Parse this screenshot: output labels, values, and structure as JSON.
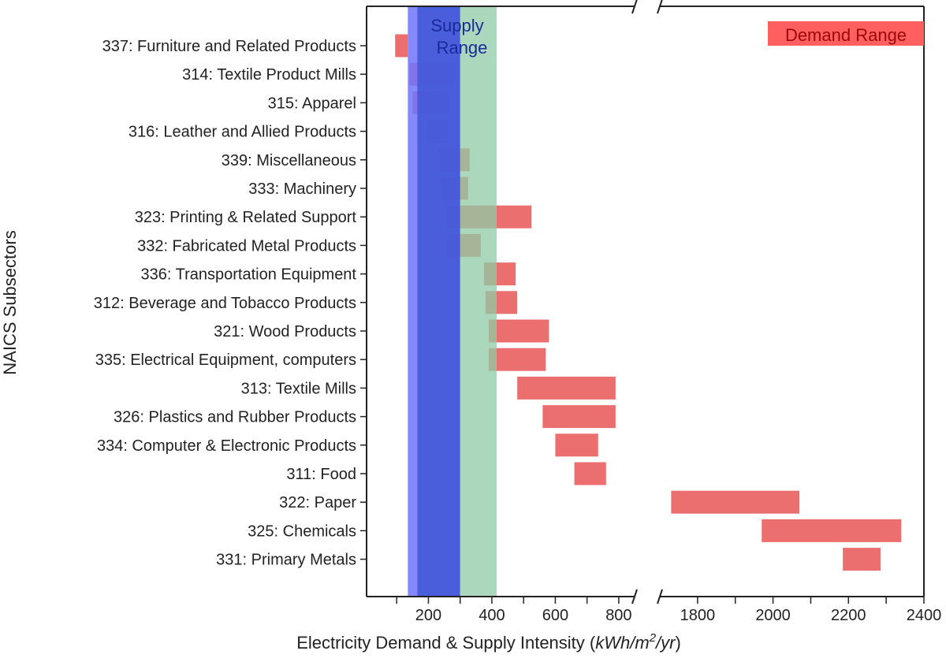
{
  "chart_data": {
    "type": "bar",
    "orientation": "horizontal-range",
    "xlabel_prefix": "Electricity Demand & Supply Intensity (",
    "xlabel_unit": "kWh/m",
    "xlabel_sup": "2",
    "xlabel_unit2": "/yr",
    "xlabel_suffix": ")",
    "ylabel": "NAICS Subsectors",
    "axis_break": true,
    "xlim_left": [
      5,
      850
    ],
    "xlim_right": [
      1700,
      2400
    ],
    "xticks_left": [
      "200",
      "400",
      "600",
      "800"
    ],
    "xticks_left_values": [
      200,
      400,
      600,
      800
    ],
    "xminor_left": [
      100,
      300,
      500,
      700
    ],
    "xticks_right": [
      "1800",
      "2000",
      "2200",
      "2400"
    ],
    "xticks_right_values": [
      1800,
      2000,
      2200,
      2400
    ],
    "xminor_right": [
      1900,
      2100,
      2300
    ],
    "grid": false,
    "categories": [
      "337: Furniture and Related Products",
      "314: Textile Product Mills",
      "315: Apparel",
      "316: Leather and Allied Products",
      "339: Miscellaneous",
      "333: Machinery",
      "323: Printing & Related Support",
      "332: Fabricated Metal Products",
      "336: Transportation Equipment",
      "312: Beverage and Tobacco Products",
      "321: Wood Products",
      "335: Electrical Equipment, computers ",
      "313: Textile Mills",
      "326: Plastics and Rubber Products",
      "334: Computer & Electronic Products",
      "311: Food",
      "322: Paper",
      "325: Chemicals",
      "331: Primary Metals"
    ],
    "demand_ranges": [
      [
        95,
        135
      ],
      [
        140,
        285
      ],
      [
        150,
        265
      ],
      [
        195,
        260
      ],
      [
        230,
        330
      ],
      [
        240,
        325
      ],
      [
        255,
        525
      ],
      [
        255,
        365
      ],
      [
        375,
        475
      ],
      [
        380,
        480
      ],
      [
        390,
        580
      ],
      [
        390,
        570
      ],
      [
        480,
        790
      ],
      [
        560,
        790
      ],
      [
        600,
        735
      ],
      [
        660,
        760
      ],
      [
        1730,
        2070
      ],
      [
        1970,
        2340
      ],
      [
        2185,
        2285
      ]
    ],
    "supply_bands": [
      {
        "range": [
          135,
          300
        ],
        "color": "#6f74ff"
      },
      {
        "range": [
          165,
          300
        ],
        "color": "#3f57d6"
      },
      {
        "range": [
          300,
          415
        ],
        "color": "#8fcba5"
      }
    ],
    "supply_label_line1": "Supply",
    "supply_label_line2": "Range",
    "demand_legend": "Demand Range",
    "colors": {
      "demand": "#ec6f70",
      "demand_legend": "#ff5f5f",
      "demand_text": "#9a0a0a",
      "supply_text": "#1a2a9a"
    }
  }
}
